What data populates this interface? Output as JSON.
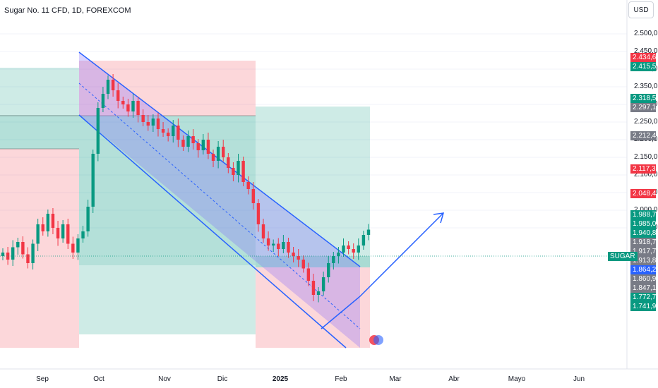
{
  "header": {
    "title": "Sugar No. 11 CFD, 1D, FOREXCOM"
  },
  "currency": "USD",
  "symbol_tag": "SUGAR",
  "x_axis_labels": [
    {
      "text": "Sep",
      "bold": false
    },
    {
      "text": "Oct",
      "bold": false
    },
    {
      "text": "Nov",
      "bold": false
    },
    {
      "text": "Dic",
      "bold": false
    },
    {
      "text": "2025",
      "bold": true
    },
    {
      "text": "Feb",
      "bold": false
    },
    {
      "text": "Mar",
      "bold": false
    },
    {
      "text": "Abr",
      "bold": false
    },
    {
      "text": "Mayo",
      "bold": false
    },
    {
      "text": "Jun",
      "bold": false
    }
  ],
  "y_tick_labels": [
    "2.500,0",
    "2.450,0",
    "2.400,0",
    "2.350,0",
    "2.300,0",
    "2.250,0",
    "2.200,0",
    "2.150,0",
    "2.100,0",
    "2.050,0",
    "2.000,0",
    "1.950,0"
  ],
  "price_labels": [
    {
      "text": "2.434,6",
      "value": 2434.6,
      "color": "#f23645"
    },
    {
      "text": "2.415,5",
      "value": 2415.5,
      "color": "#089981"
    },
    {
      "text": "2.318,5",
      "value": 2318.5,
      "color": "#089981"
    },
    {
      "text": "2.297,1",
      "value": 2297.1,
      "color": "#787b86"
    },
    {
      "text": "2.212,4",
      "value": 2212.4,
      "color": "#787b86"
    },
    {
      "text": "2.117,3",
      "value": 2117.3,
      "color": "#f23645"
    },
    {
      "text": "2.048,4",
      "value": 2048.4,
      "color": "#f23645"
    },
    {
      "text": "1.988,7",
      "value": 1988.7,
      "color": "#089981"
    },
    {
      "text": "1.985,0",
      "value": 1985.0,
      "color": "#089981"
    },
    {
      "text": "1.940,8",
      "value": 1940.8,
      "color": "#089981"
    },
    {
      "text": "1.918,7",
      "value": 1918.7,
      "color": "#787b86"
    },
    {
      "text": "1.917,7",
      "value": 1917.7,
      "color": "#787b86"
    },
    {
      "text": "1.913,8",
      "value": 1913.8,
      "color": "#787b86"
    },
    {
      "text": "1.864,2",
      "value": 1864.2,
      "color": "#2962ff"
    },
    {
      "text": "1.860,9",
      "value": 1860.9,
      "color": "#787b86"
    },
    {
      "text": "1.847,1",
      "value": 1847.1,
      "color": "#787b86"
    },
    {
      "text": "1.772,7",
      "value": 1772.7,
      "color": "#089981"
    },
    {
      "text": "1.741,9",
      "value": 1741.9,
      "color": "#089981"
    }
  ],
  "colors": {
    "up": "#089981",
    "down": "#f23645",
    "channel": "#2962ff",
    "grid": "#f0f3fa"
  },
  "chart_data": {
    "type": "candlestick",
    "title": "Sugar No. 11 CFD, 1D, FOREXCOM",
    "ylim": [
      1720,
      2500
    ],
    "last_price": 1940.8,
    "series": [
      {
        "name": "SUGAR",
        "values": [
          1880,
          1860,
          1895,
          1910,
          1875,
          1850,
          1905,
          1960,
          1940,
          1990,
          1950,
          1920,
          1960,
          1905,
          1880,
          1920,
          1940,
          2010,
          2160,
          2290,
          2330,
          2370,
          2340,
          2310,
          2300,
          2280,
          2310,
          2270,
          2250,
          2240,
          2260,
          2230,
          2220,
          2210,
          2240,
          2200,
          2180,
          2210,
          2190,
          2170,
          2200,
          2160,
          2140,
          2180,
          2150,
          2120,
          2100,
          2140,
          2080,
          2060,
          2020,
          1960,
          1920,
          1900,
          1905,
          1890,
          1910,
          1880,
          1870,
          1860,
          1835,
          1800,
          1760,
          1770,
          1810,
          1850,
          1870,
          1880,
          1900,
          1890,
          1880,
          1900,
          1930,
          1945
        ]
      }
    ]
  }
}
